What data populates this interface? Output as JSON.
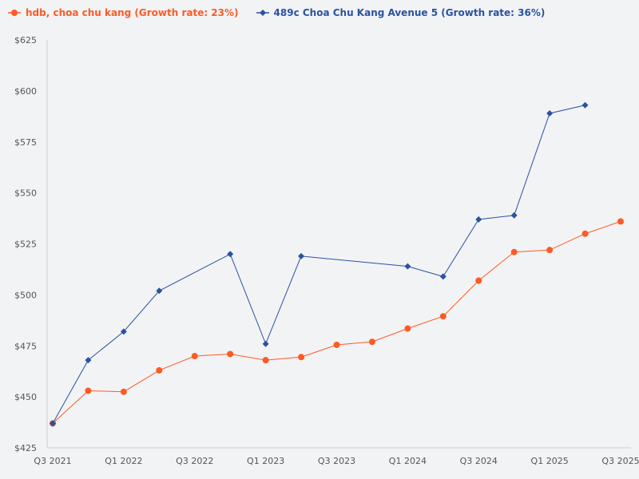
{
  "chart_data": {
    "type": "line",
    "title": "",
    "xlabel": "",
    "ylabel": "",
    "x": [
      "Q3 2021",
      "Q4 2021",
      "Q1 2022",
      "Q2 2022",
      "Q3 2022",
      "Q4 2022",
      "Q1 2023",
      "Q2 2023",
      "Q3 2023",
      "Q4 2023",
      "Q1 2024",
      "Q2 2024",
      "Q3 2024",
      "Q4 2024",
      "Q1 2025",
      "Q2 2025",
      "Q3 2025"
    ],
    "x_tick_labels": [
      "Q3 2021",
      "Q1 2022",
      "Q3 2022",
      "Q1 2023",
      "Q3 2023",
      "Q1 2024",
      "Q3 2024",
      "Q1 2025",
      "Q3 2025"
    ],
    "ylim": [
      425,
      625
    ],
    "y_ticks": [
      425,
      450,
      475,
      500,
      525,
      550,
      575,
      600,
      625
    ],
    "y_tick_labels": [
      "$425",
      "$450",
      "$475",
      "$500",
      "$525",
      "$550",
      "$575",
      "$600",
      "$625"
    ],
    "grid": false,
    "legend_position": "top-left",
    "series": [
      {
        "name": "hdb, choa chu kang (Growth rate: 23%)",
        "color": "#fe5a24",
        "marker": "circle",
        "values": [
          437,
          453,
          452.5,
          463,
          470,
          471,
          468,
          469.5,
          475.5,
          477,
          483.5,
          489.5,
          507,
          521,
          522,
          530,
          536
        ]
      },
      {
        "name": "489c Choa Chu Kang Avenue 5 (Growth rate: 36%)",
        "color": "#2a52a0",
        "marker": "diamond",
        "values": [
          437,
          468,
          482,
          502,
          null,
          520,
          476,
          519,
          null,
          null,
          514,
          509,
          537,
          539,
          589,
          593,
          null
        ]
      }
    ]
  }
}
